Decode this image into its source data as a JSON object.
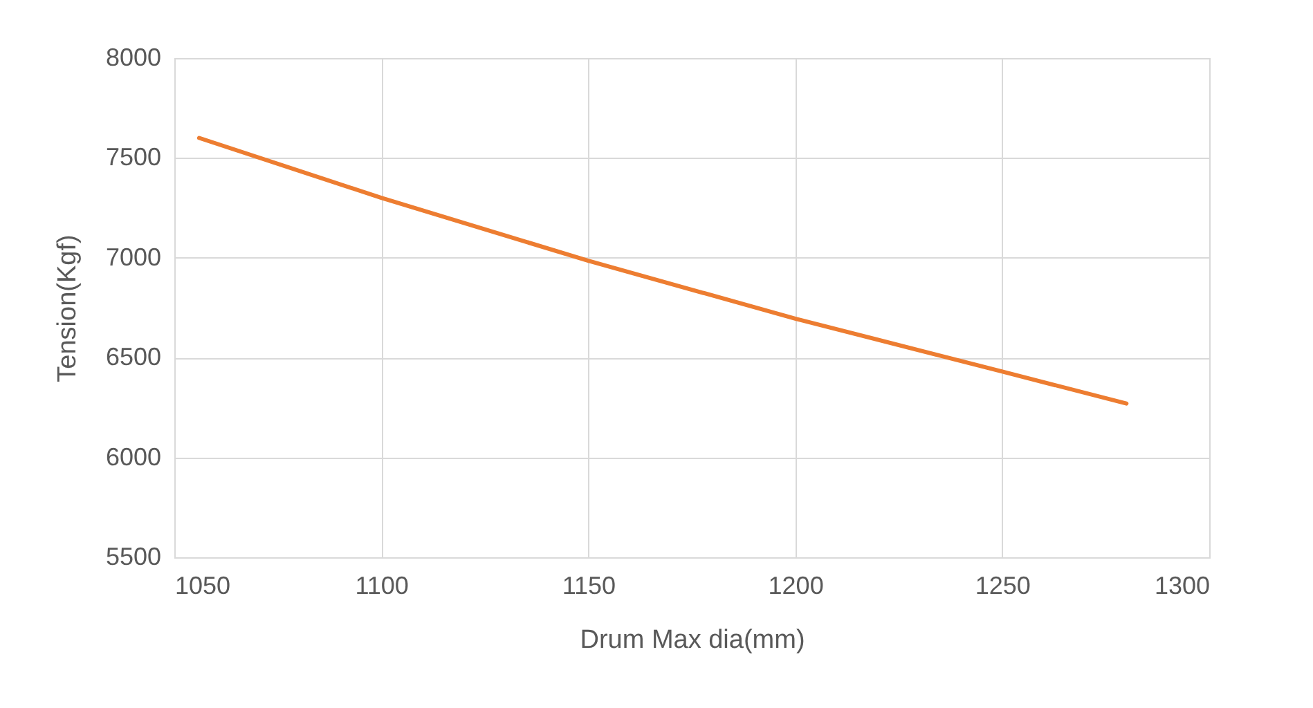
{
  "chart_data": {
    "type": "line",
    "xlabel": "Drum Max dia(mm)",
    "ylabel": "Tension(Kgf)",
    "x": [
      1056,
      1100,
      1150,
      1200,
      1250,
      1280
    ],
    "series": [
      {
        "color": "#ed7d31",
        "values": [
          7600,
          7300,
          6985,
          6695,
          6430,
          6270
        ]
      }
    ],
    "xlim": [
      1050,
      1300
    ],
    "xticks": [
      1050,
      1100,
      1150,
      1200,
      1250,
      1300
    ],
    "ylim": [
      5500,
      8000
    ],
    "yticks": [
      5500,
      6000,
      6500,
      7000,
      7500,
      8000
    ],
    "grid": true,
    "marker": "none",
    "line_style": "solid"
  }
}
